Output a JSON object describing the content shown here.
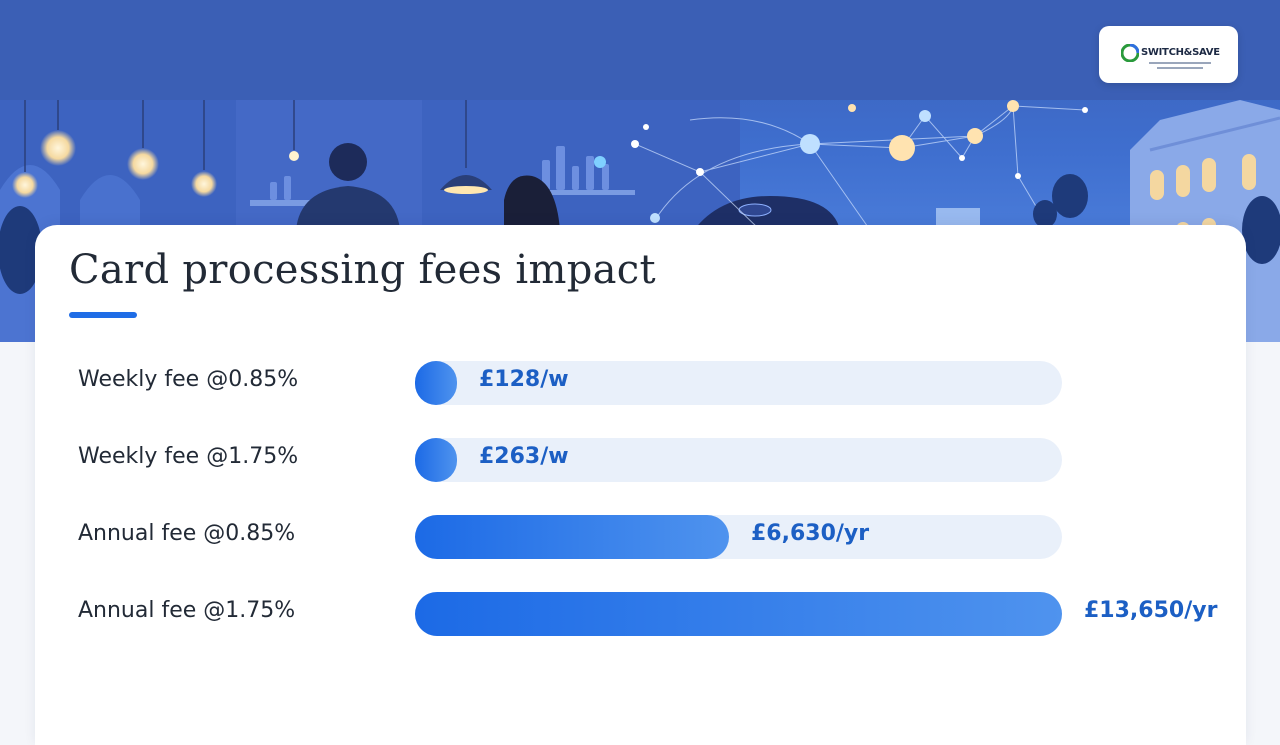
{
  "brand": {
    "name": "SWITCH&SAVE"
  },
  "chart_data": {
    "type": "bar",
    "orientation": "horizontal",
    "title": "Card processing fees impact",
    "categories": [
      "Weekly fee @0.85%",
      "Weekly fee @1.75%",
      "Annual fee @0.85%",
      "Annual fee @1.75%"
    ],
    "values": [
      128,
      263,
      6630,
      13650
    ],
    "value_labels": [
      "£128/w",
      "£263/w",
      "£6,630/yr",
      "£13,650/yr"
    ],
    "max": 13650
  },
  "colors": {
    "accent": "#1f6de6",
    "bar_start": "#1c6ae6",
    "bar_end": "#4f93ee",
    "track": "#e9f0fa",
    "value_text": "#1c5fc4"
  }
}
